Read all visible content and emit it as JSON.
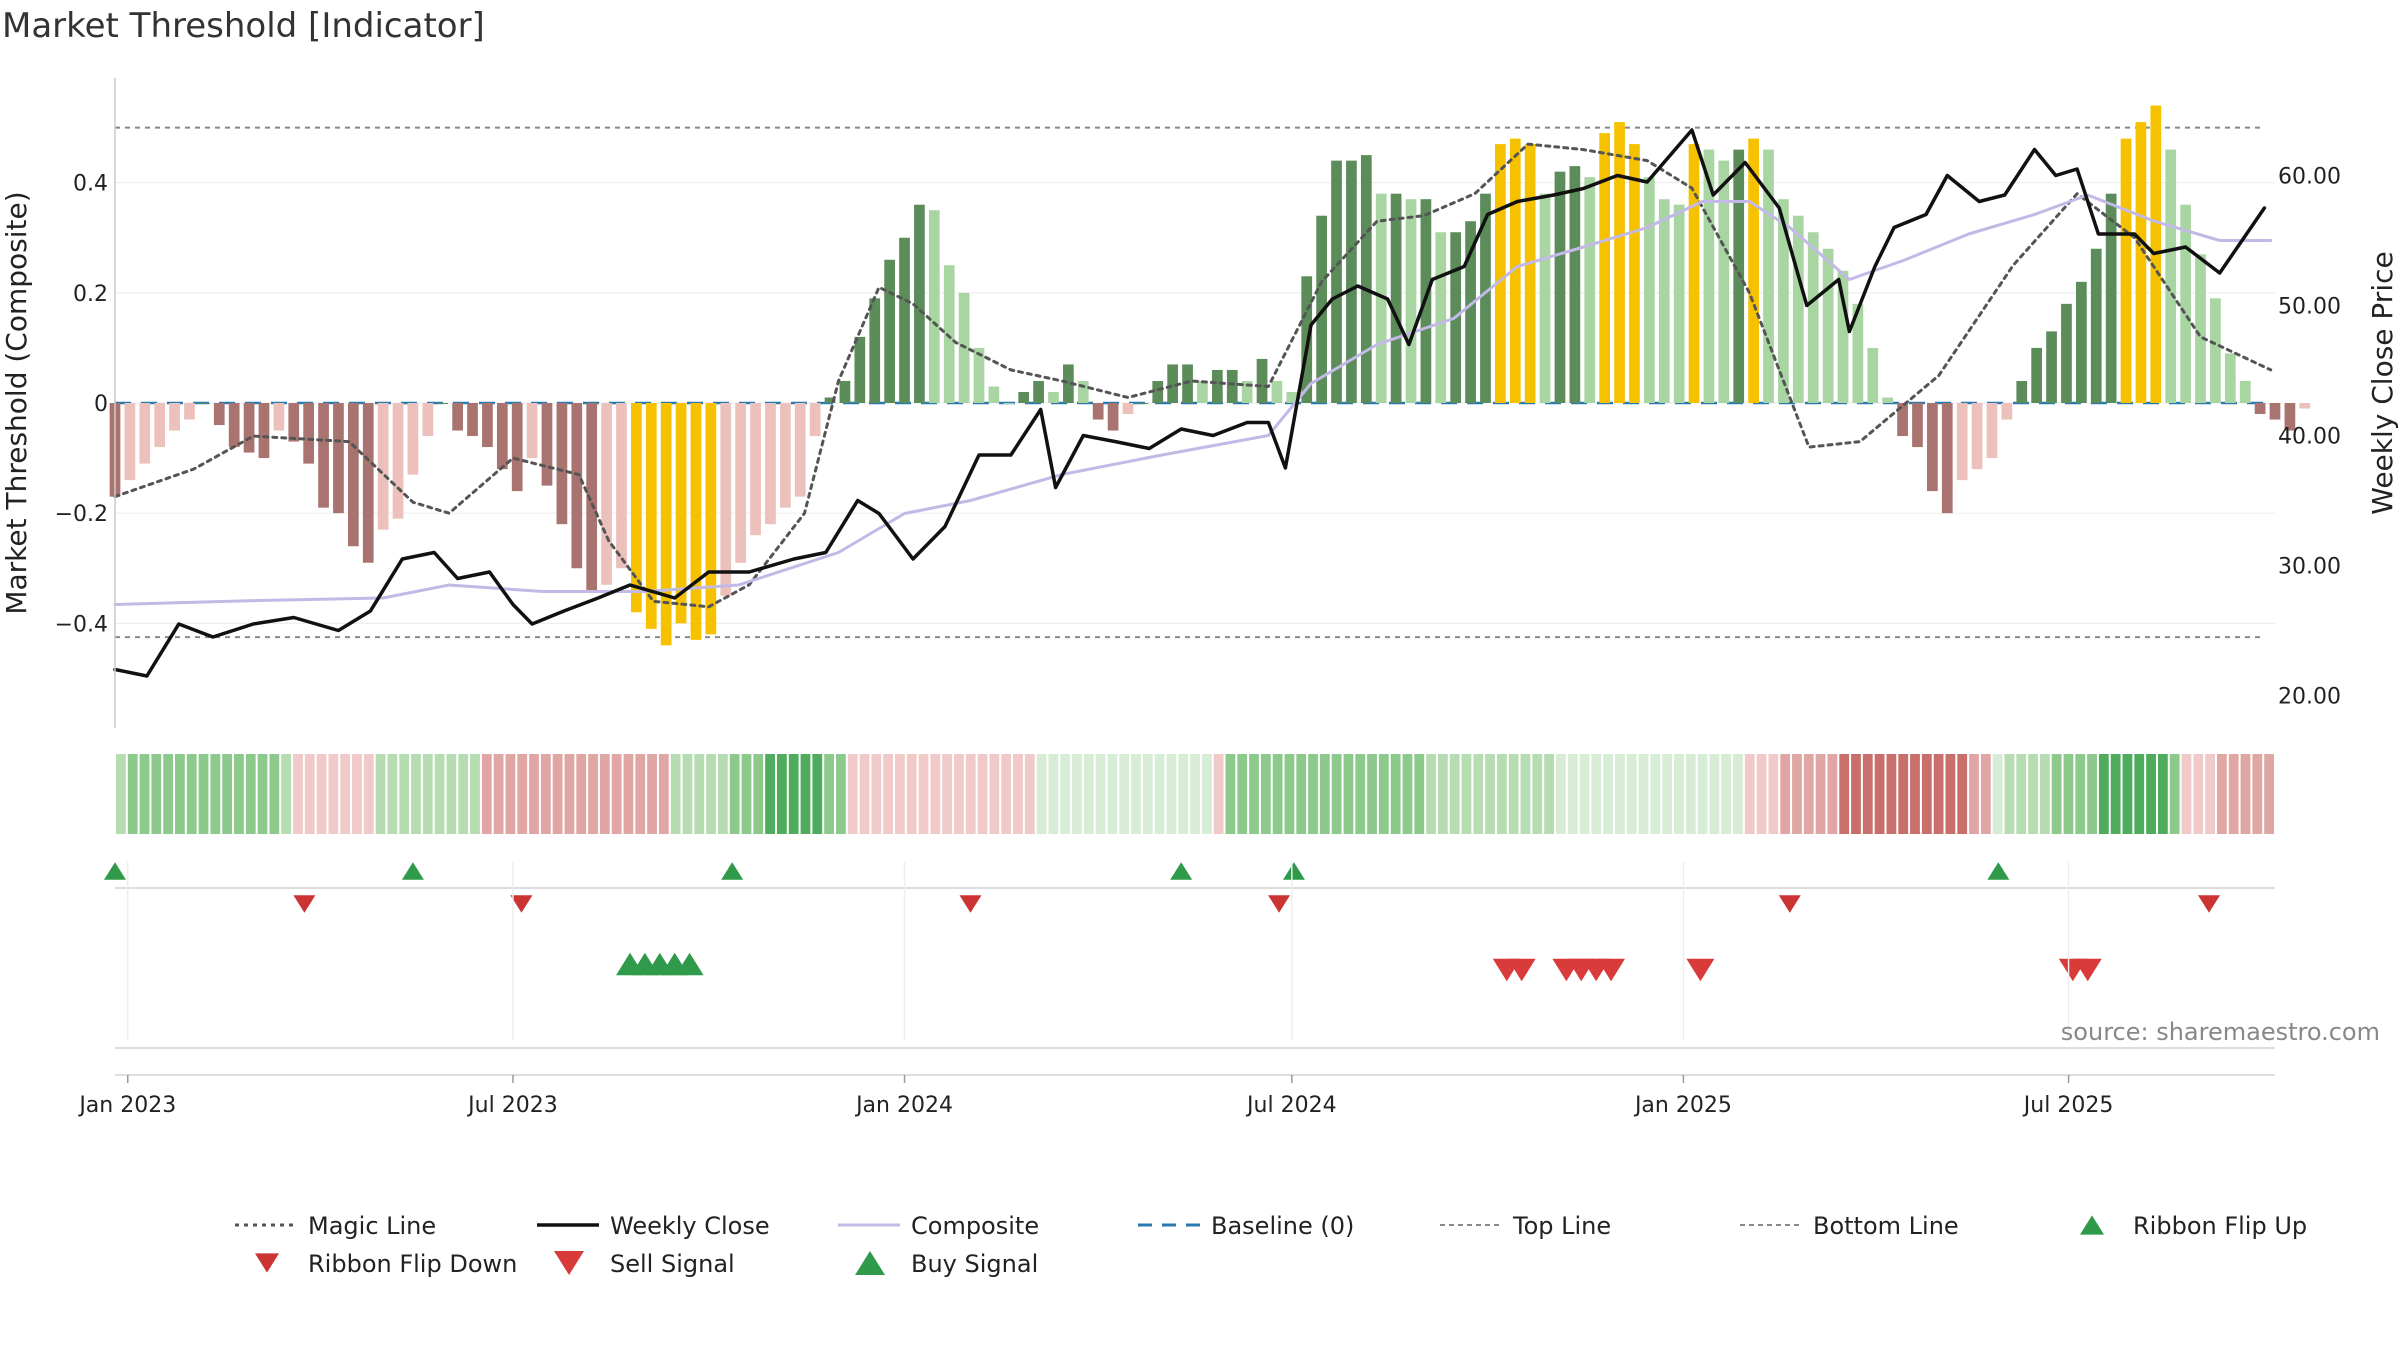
{
  "title": "Market Threshold [Indicator]",
  "chart_data": {
    "type": "bar",
    "title": "Market Threshold [Indicator]",
    "ylabel_left": "Market Threshold (Composite)",
    "ylabel_right": "Weekly Close Price",
    "ylim_left": [
      -0.59,
      0.59
    ],
    "ylim_right": [
      17.5,
      67.5
    ],
    "yticks_left": [
      {
        "value": 0.4,
        "label": "0.4"
      },
      {
        "value": 0.2,
        "label": "0.2"
      },
      {
        "value": 0,
        "label": "0"
      },
      {
        "value": -0.2,
        "label": "−0.2"
      },
      {
        "value": -0.4,
        "label": "−0.4"
      }
    ],
    "yticks_right": [
      {
        "value": 60,
        "label": "60.00"
      },
      {
        "value": 50,
        "label": "50.00"
      },
      {
        "value": 40,
        "label": "40.00"
      },
      {
        "value": 30,
        "label": "30.00"
      },
      {
        "value": 20,
        "label": "20.00"
      }
    ],
    "x_start": "2022-12-26",
    "x_end": "2025-10-06",
    "xticks": [
      {
        "date": "2023-01-01",
        "label": "Jan 2023"
      },
      {
        "date": "2023-07-01",
        "label": "Jul 2023"
      },
      {
        "date": "2024-01-01",
        "label": "Jan 2024"
      },
      {
        "date": "2024-07-01",
        "label": "Jul 2024"
      },
      {
        "date": "2025-01-01",
        "label": "Jan 2025"
      },
      {
        "date": "2025-07-01",
        "label": "Jul 2025"
      }
    ],
    "top_line": 0.5,
    "bottom_line": -0.425,
    "baseline": 0,
    "bar_start": "2022-12-26",
    "bar_values": [
      -0.17,
      -0.14,
      -0.11,
      -0.08,
      -0.05,
      -0.03,
      0,
      -0.04,
      -0.08,
      -0.09,
      -0.1,
      -0.05,
      -0.07,
      -0.11,
      -0.19,
      -0.2,
      -0.26,
      -0.29,
      -0.23,
      -0.21,
      -0.13,
      -0.06,
      0,
      -0.05,
      -0.06,
      -0.08,
      -0.12,
      -0.16,
      -0.1,
      -0.15,
      -0.22,
      -0.3,
      -0.34,
      -0.33,
      -0.3,
      -0.38,
      -0.41,
      -0.44,
      -0.4,
      -0.43,
      -0.42,
      -0.35,
      -0.29,
      -0.24,
      -0.22,
      -0.19,
      -0.17,
      -0.06,
      0.01,
      0.04,
      0.12,
      0.19,
      0.26,
      0.3,
      0.36,
      0.35,
      0.25,
      0.2,
      0.1,
      0.03,
      0,
      0.02,
      0.04,
      0.02,
      0.07,
      0.04,
      -0.03,
      -0.05,
      -0.02,
      0,
      0.04,
      0.07,
      0.07,
      0.04,
      0.06,
      0.06,
      0.04,
      0.08,
      0.04,
      0.02,
      0.23,
      0.34,
      0.44,
      0.44,
      0.45,
      0.38,
      0.38,
      0.37,
      0.37,
      0.31,
      0.31,
      0.33,
      0.38,
      0.47,
      0.48,
      0.47,
      0.38,
      0.42,
      0.43,
      0.41,
      0.49,
      0.51,
      0.47,
      0.41,
      0.37,
      0.36,
      0.47,
      0.46,
      0.44,
      0.46,
      0.48,
      0.46,
      0.37,
      0.34,
      0.31,
      0.28,
      0.24,
      0.18,
      0.1,
      0.01,
      -0.06,
      -0.08,
      -0.16,
      -0.2,
      -0.14,
      -0.12,
      -0.1,
      -0.03,
      0.04,
      0.1,
      0.13,
      0.18,
      0.22,
      0.28,
      0.38,
      0.48,
      0.51,
      0.54,
      0.46,
      0.36,
      0.27,
      0.19,
      0.09,
      0.04,
      -0.02,
      -0.03,
      -0.05,
      -0.01
    ],
    "bar_colors": {
      "strong_up": "#5b8c5a",
      "weak_up": "#a8d5a2",
      "strong_down": "#a97470",
      "weak_down": "#ecc0bb",
      "extreme": "#f6c200"
    },
    "series": [
      {
        "name": "Magic Line",
        "axis": "left",
        "color": "#555555",
        "style": "dotted",
        "points": [
          [
            "2022-12-26",
            -0.17
          ],
          [
            "2023-02-01",
            -0.12
          ],
          [
            "2023-03-01",
            -0.06
          ],
          [
            "2023-04-15",
            -0.07
          ],
          [
            "2023-05-15",
            -0.18
          ],
          [
            "2023-06-01",
            -0.2
          ],
          [
            "2023-07-01",
            -0.1
          ],
          [
            "2023-08-01",
            -0.13
          ],
          [
            "2023-08-15",
            -0.25
          ],
          [
            "2023-09-05",
            -0.36
          ],
          [
            "2023-10-01",
            -0.37
          ],
          [
            "2023-10-20",
            -0.33
          ],
          [
            "2023-11-15",
            -0.2
          ],
          [
            "2023-12-01",
            0.04
          ],
          [
            "2023-12-20",
            0.21
          ],
          [
            "2024-01-05",
            0.18
          ],
          [
            "2024-01-25",
            0.11
          ],
          [
            "2024-02-20",
            0.06
          ],
          [
            "2024-03-15",
            0.04
          ],
          [
            "2024-04-15",
            0.01
          ],
          [
            "2024-05-15",
            0.04
          ],
          [
            "2024-06-20",
            0.03
          ],
          [
            "2024-07-15",
            0.22
          ],
          [
            "2024-08-10",
            0.33
          ],
          [
            "2024-09-01",
            0.34
          ],
          [
            "2024-09-25",
            0.38
          ],
          [
            "2024-10-20",
            0.47
          ],
          [
            "2024-11-15",
            0.46
          ],
          [
            "2024-12-15",
            0.44
          ],
          [
            "2025-01-05",
            0.39
          ],
          [
            "2025-02-01",
            0.2
          ],
          [
            "2025-03-01",
            -0.08
          ],
          [
            "2025-03-25",
            -0.07
          ],
          [
            "2025-05-01",
            0.05
          ],
          [
            "2025-06-05",
            0.25
          ],
          [
            "2025-07-05",
            0.38
          ],
          [
            "2025-08-01",
            0.3
          ],
          [
            "2025-09-01",
            0.12
          ],
          [
            "2025-10-04",
            0.06
          ]
        ]
      },
      {
        "name": "Weekly Close",
        "axis": "right",
        "color": "#111111",
        "style": "solid",
        "points": [
          [
            "2022-12-26",
            22.0
          ],
          [
            "2023-01-10",
            21.5
          ],
          [
            "2023-01-25",
            25.5
          ],
          [
            "2023-02-10",
            24.5
          ],
          [
            "2023-03-01",
            25.5
          ],
          [
            "2023-03-20",
            26.0
          ],
          [
            "2023-04-10",
            25.0
          ],
          [
            "2023-04-25",
            26.5
          ],
          [
            "2023-05-10",
            30.5
          ],
          [
            "2023-05-25",
            31.0
          ],
          [
            "2023-06-05",
            29.0
          ],
          [
            "2023-06-20",
            29.5
          ],
          [
            "2023-07-01",
            27.0
          ],
          [
            "2023-07-10",
            25.5
          ],
          [
            "2023-07-25",
            26.5
          ],
          [
            "2023-08-10",
            27.5
          ],
          [
            "2023-08-25",
            28.5
          ],
          [
            "2023-09-15",
            27.5
          ],
          [
            "2023-10-01",
            29.5
          ],
          [
            "2023-10-20",
            29.5
          ],
          [
            "2023-11-10",
            30.5
          ],
          [
            "2023-11-25",
            31.0
          ],
          [
            "2023-12-10",
            35.0
          ],
          [
            "2023-12-20",
            34.0
          ],
          [
            "2024-01-05",
            30.5
          ],
          [
            "2024-01-20",
            33.0
          ],
          [
            "2024-02-05",
            38.5
          ],
          [
            "2024-02-20",
            38.5
          ],
          [
            "2024-03-05",
            42.0
          ],
          [
            "2024-03-12",
            36.0
          ],
          [
            "2024-03-25",
            40.0
          ],
          [
            "2024-04-10",
            39.5
          ],
          [
            "2024-04-25",
            39.0
          ],
          [
            "2024-05-10",
            40.5
          ],
          [
            "2024-05-25",
            40.0
          ],
          [
            "2024-06-10",
            41.0
          ],
          [
            "2024-06-20",
            41.0
          ],
          [
            "2024-06-28",
            37.5
          ],
          [
            "2024-07-10",
            48.5
          ],
          [
            "2024-07-20",
            50.5
          ],
          [
            "2024-08-01",
            51.5
          ],
          [
            "2024-08-15",
            50.5
          ],
          [
            "2024-08-25",
            47.0
          ],
          [
            "2024-09-05",
            52.0
          ],
          [
            "2024-09-20",
            53.0
          ],
          [
            "2024-10-01",
            57.0
          ],
          [
            "2024-10-15",
            58.0
          ],
          [
            "2024-11-01",
            58.5
          ],
          [
            "2024-11-15",
            59.0
          ],
          [
            "2024-12-01",
            60.0
          ],
          [
            "2024-12-15",
            59.5
          ],
          [
            "2025-01-05",
            63.5
          ],
          [
            "2025-01-15",
            58.5
          ],
          [
            "2025-01-30",
            61.0
          ],
          [
            "2025-02-15",
            57.5
          ],
          [
            "2025-02-28",
            50.0
          ],
          [
            "2025-03-15",
            52.0
          ],
          [
            "2025-03-20",
            48.0
          ],
          [
            "2025-04-01",
            53.0
          ],
          [
            "2025-04-10",
            56.0
          ],
          [
            "2025-04-25",
            57.0
          ],
          [
            "2025-05-05",
            60.0
          ],
          [
            "2025-05-20",
            58.0
          ],
          [
            "2025-06-01",
            58.5
          ],
          [
            "2025-06-15",
            62.0
          ],
          [
            "2025-06-25",
            60.0
          ],
          [
            "2025-07-05",
            60.5
          ],
          [
            "2025-07-15",
            55.5
          ],
          [
            "2025-08-01",
            55.5
          ],
          [
            "2025-08-10",
            54.0
          ],
          [
            "2025-08-25",
            54.5
          ],
          [
            "2025-09-10",
            52.5
          ],
          [
            "2025-10-01",
            57.5
          ]
        ]
      },
      {
        "name": "Composite",
        "axis": "right",
        "color": "#c3b9e6",
        "style": "solid",
        "points": [
          [
            "2022-12-26",
            27.0
          ],
          [
            "2023-03-01",
            27.3
          ],
          [
            "2023-05-01",
            27.5
          ],
          [
            "2023-06-01",
            28.5
          ],
          [
            "2023-07-15",
            28.0
          ],
          [
            "2023-09-01",
            28.0
          ],
          [
            "2023-10-15",
            28.5
          ],
          [
            "2023-12-01",
            31.0
          ],
          [
            "2024-01-01",
            34.0
          ],
          [
            "2024-02-01",
            35.0
          ],
          [
            "2024-03-15",
            37.0
          ],
          [
            "2024-05-01",
            38.5
          ],
          [
            "2024-06-20",
            40.0
          ],
          [
            "2024-07-10",
            44.0
          ],
          [
            "2024-08-10",
            47.0
          ],
          [
            "2024-09-15",
            49.0
          ],
          [
            "2024-10-15",
            53.0
          ],
          [
            "2024-11-15",
            54.5
          ],
          [
            "2024-12-15",
            56.0
          ],
          [
            "2025-01-10",
            58.0
          ],
          [
            "2025-02-01",
            58.0
          ],
          [
            "2025-02-20",
            56.0
          ],
          [
            "2025-03-20",
            52.0
          ],
          [
            "2025-04-15",
            53.5
          ],
          [
            "2025-05-15",
            55.5
          ],
          [
            "2025-06-15",
            57.0
          ],
          [
            "2025-07-10",
            58.5
          ],
          [
            "2025-08-10",
            56.5
          ],
          [
            "2025-09-10",
            55.0
          ],
          [
            "2025-10-04",
            55.0
          ]
        ]
      }
    ],
    "ribbon_cells": [
      "LG",
      "MG",
      "MG",
      "MG",
      "MG",
      "MG",
      "MG",
      "MG",
      "MG",
      "MG",
      "MG",
      "MG",
      "MG",
      "MG",
      "LG",
      "LR",
      "LR",
      "LR",
      "LR",
      "LR",
      "LR",
      "LR",
      "LG",
      "LG",
      "LG",
      "LG",
      "LG",
      "LG",
      "LG",
      "LG",
      "LG",
      "MR",
      "MR",
      "MR",
      "MR",
      "MR",
      "MR",
      "MR",
      "MR",
      "MR",
      "MR",
      "MR",
      "MR",
      "MR",
      "MR",
      "MR",
      "MR",
      "LG",
      "LG",
      "LG",
      "LG",
      "LG",
      "MG",
      "MG",
      "MG",
      "DG",
      "DG",
      "DG",
      "DG",
      "DG",
      "MG",
      "MG",
      "LR",
      "LR",
      "LR",
      "LR",
      "LR",
      "LR",
      "LR",
      "LR",
      "LR",
      "LR",
      "LR",
      "LR",
      "LR",
      "LR",
      "LR",
      "LR",
      "PG",
      "PG",
      "PG",
      "PG",
      "PG",
      "PG",
      "PG",
      "PG",
      "PG",
      "PG",
      "PG",
      "PG",
      "PG",
      "PG",
      "PG",
      "LR",
      "MG",
      "MG",
      "MG",
      "MG",
      "MG",
      "MG",
      "MG",
      "MG",
      "MG",
      "MG",
      "MG",
      "MG",
      "MG",
      "MG",
      "MG",
      "MG",
      "MG",
      "LG",
      "LG",
      "LG",
      "LG",
      "LG",
      "LG",
      "LG",
      "LG",
      "LG",
      "LG",
      "LG",
      "PG",
      "PG",
      "PG",
      "PG",
      "PG",
      "PG",
      "PG",
      "PG",
      "PG",
      "PG",
      "PG",
      "PG",
      "PG",
      "PG",
      "PG",
      "PG",
      "LR",
      "LR",
      "LR",
      "MR",
      "MR",
      "MR",
      "MR",
      "MR",
      "DR",
      "DR",
      "DR",
      "DR",
      "DR",
      "DR",
      "DR",
      "DR",
      "DR",
      "DR",
      "DR",
      "MR",
      "MR",
      "PG",
      "LG",
      "LG",
      "LG",
      "LG",
      "MG",
      "MG",
      "MG",
      "MG",
      "DG",
      "DG",
      "DG",
      "DG",
      "DG",
      "DG",
      "MG",
      "LR",
      "LR",
      "LR",
      "MR",
      "MR",
      "MR",
      "MR",
      "MR"
    ],
    "ribbon_colors": {
      "PG": "#d7ecd4",
      "LG": "#b6dcb1",
      "MG": "#8cc98a",
      "DG": "#4fac5c",
      "LR": "#f0cac8",
      "MR": "#dfa6a3",
      "DR": "#c9706c"
    },
    "ribbon_flip_up": [
      "2022-12-26",
      "2023-05-15",
      "2023-10-12",
      "2024-05-10",
      "2024-07-02",
      "2025-05-29"
    ],
    "ribbon_flip_down": [
      "2023-03-25",
      "2023-07-05",
      "2024-02-01",
      "2024-06-25",
      "2025-02-20",
      "2025-09-05"
    ],
    "buy_signal": [
      "2023-08-25",
      "2023-09-01",
      "2023-09-08",
      "2023-09-15",
      "2023-09-22"
    ],
    "sell_signal": [
      "2024-10-10",
      "2024-10-17",
      "2024-11-07",
      "2024-11-14",
      "2024-11-21",
      "2024-11-28",
      "2025-01-09",
      "2025-07-03",
      "2025-07-10"
    ],
    "signal_colors": {
      "flip_up": "#2e9a4a",
      "flip_down": "#cc3333",
      "buy": "#2e9a4a",
      "sell": "#d93a3a"
    },
    "source_note": "source: sharemaestro.com",
    "legend": [
      {
        "label": "Magic Line",
        "kind": "dotted",
        "color": "#555555"
      },
      {
        "label": "Weekly Close",
        "kind": "solid",
        "color": "#111111"
      },
      {
        "label": "Composite",
        "kind": "solid",
        "color": "#c3b9e6"
      },
      {
        "label": "Baseline (0)",
        "kind": "dashed",
        "color": "#2a7ab0"
      },
      {
        "label": "Top Line",
        "kind": "dashed-thin",
        "color": "#888888"
      },
      {
        "label": "Bottom Line",
        "kind": "dashed-thin",
        "color": "#888888"
      },
      {
        "label": "Ribbon Flip Up",
        "kind": "tri-up",
        "color": "#2e9a4a"
      },
      {
        "label": "Ribbon Flip Down",
        "kind": "tri-down",
        "color": "#cc3333"
      },
      {
        "label": "Sell Signal",
        "kind": "tri-down-big",
        "color": "#d93a3a"
      },
      {
        "label": "Buy Signal",
        "kind": "tri-up-big",
        "color": "#2e9a4a"
      }
    ]
  }
}
